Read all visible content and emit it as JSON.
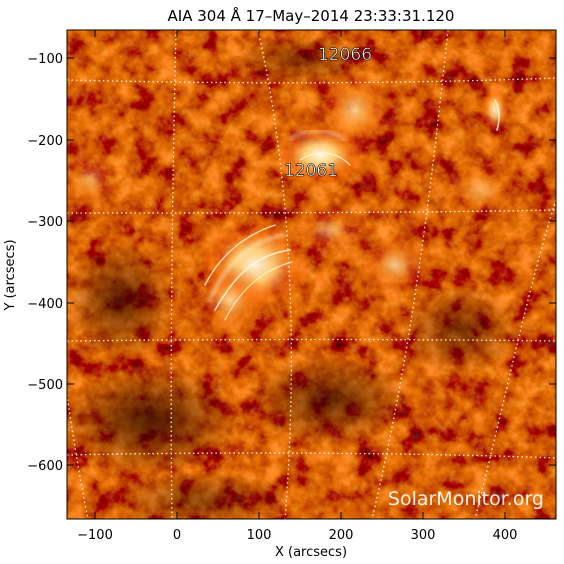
{
  "title": "AIA 304 Å 17–May–2014 23:33:31.120",
  "xlabel": "X (arcsecs)",
  "ylabel": "Y (arcsecs)",
  "x_ticks": [
    "−100",
    "0",
    "100",
    "200",
    "300",
    "400"
  ],
  "y_ticks": [
    "−100",
    "−200",
    "−300",
    "−400",
    "−500",
    "−600"
  ],
  "region_labels": [
    "12066",
    "12061"
  ],
  "watermark": "SolarMonitor.org",
  "colors": {
    "background": "#ffffff",
    "plasma_dark": "#2a0300",
    "plasma_mid": "#a51a00",
    "plasma_bright": "#ff8a1e",
    "plasma_hot": "#fff2d6",
    "grid": "#ffffff"
  }
}
